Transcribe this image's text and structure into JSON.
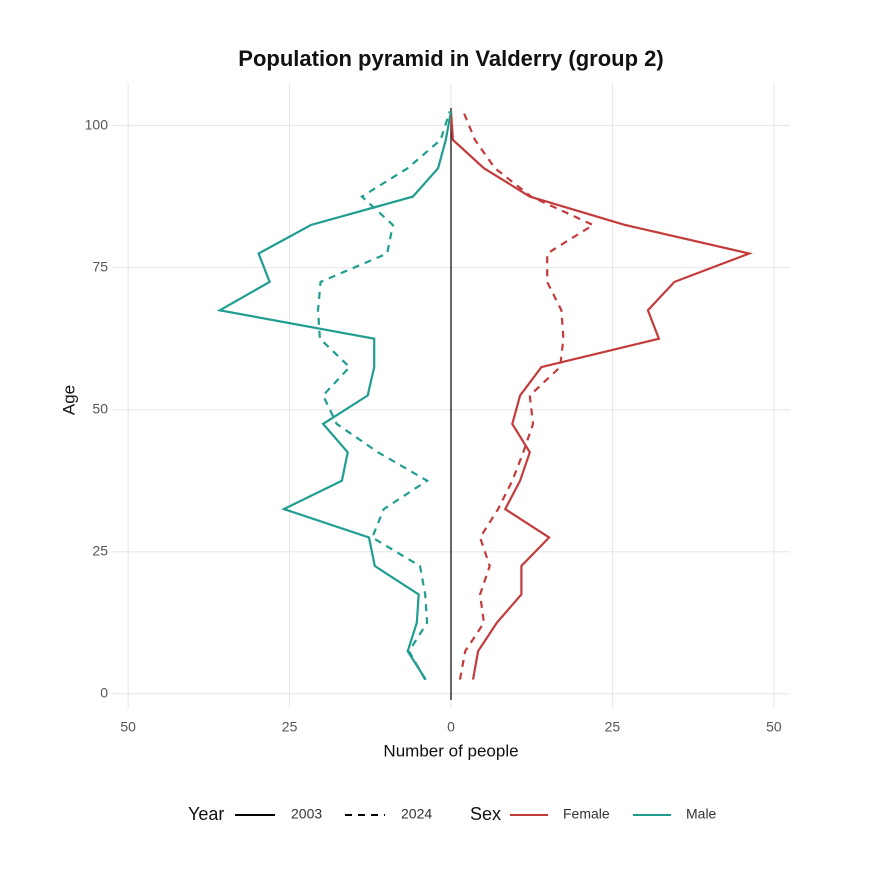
{
  "chart_data": {
    "type": "line",
    "title": "Population pyramid in Valderry (group 2)",
    "x_label": "Number of people",
    "y_label": "Age",
    "xlim": [
      -52.5,
      52.5
    ],
    "xticks": [
      {
        "value": -50,
        "label": "50"
      },
      {
        "value": -25,
        "label": "25"
      },
      0,
      25,
      50
    ],
    "ylim": [
      -2.5,
      107.5
    ],
    "yticks": [
      0,
      25,
      50,
      75,
      100
    ],
    "grid": true,
    "y": [
      2.5,
      7.5,
      12.5,
      17.5,
      22.5,
      27.5,
      32.5,
      37.5,
      42.5,
      47.5,
      52.5,
      57.5,
      62.5,
      67.5,
      72.5,
      77.5,
      82.5,
      87.5,
      92.5,
      97.5,
      102.5
    ],
    "year_legend_title": "Year",
    "sex_legend_title": "Sex",
    "years": [
      {
        "name": "2003",
        "dash": "solid"
      },
      {
        "name": "2024",
        "dash": "dashed"
      }
    ],
    "series": [
      {
        "name": "Female",
        "color": "#c43b3b",
        "values": [
          [
            3.4,
            4.2,
            7.1,
            10.9,
            10.9,
            15.2,
            8.4,
            10.7,
            12.2,
            9.5,
            10.7,
            14.0,
            32.2,
            30.5,
            34.6,
            46.2,
            27.0,
            12.2,
            5.1,
            0.3,
            0
          ],
          [
            1.4,
            2.2,
            5.1,
            4.5,
            6.0,
            4.5,
            7.3,
            9.5,
            11.2,
            12.7,
            12.2,
            16.9,
            17.4,
            17.1,
            14.9,
            14.9,
            22.0,
            12.4,
            6.8,
            3.7,
            1.9
          ]
        ]
      },
      {
        "name": "Male",
        "color": "#1f9e8f",
        "values": [
          [
            -3.9,
            -6.7,
            -5.3,
            -5.0,
            -11.8,
            -12.7,
            -25.9,
            -16.9,
            -16.0,
            -19.8,
            -12.9,
            -11.9,
            -11.9,
            -35.8,
            -28.1,
            -29.8,
            -21.7,
            -5.9,
            -2.0,
            -0.8,
            0
          ],
          [
            -4.0,
            -6.5,
            -3.7,
            -4.0,
            -4.8,
            -12.2,
            -10.4,
            -3.7,
            -11.3,
            -17.7,
            -19.8,
            -15.7,
            -20.3,
            -20.6,
            -20.2,
            -9.9,
            -9.0,
            -13.8,
            -6.7,
            -1.6,
            -0.2
          ]
        ]
      }
    ]
  }
}
